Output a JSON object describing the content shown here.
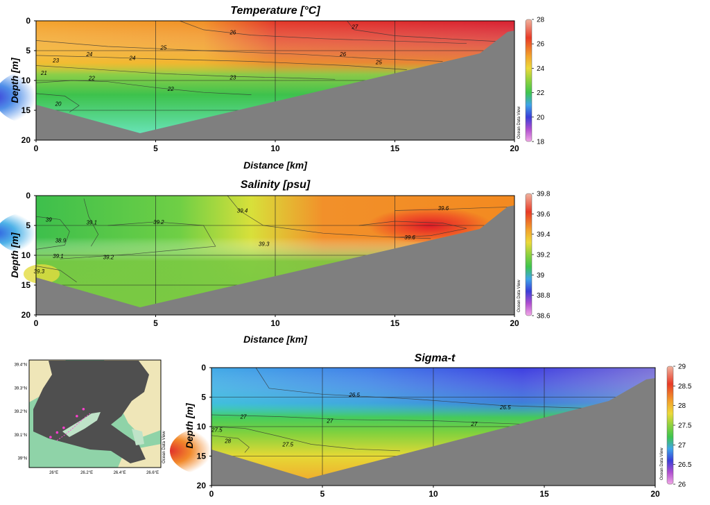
{
  "odv_label": "Ocean Data View",
  "chart_data": [
    {
      "id": "temperature",
      "type": "heatmap",
      "title": "Temperature [°C]",
      "xlabel": "Distance [km]",
      "ylabel": "Depth [m]",
      "xlim": [
        0,
        20
      ],
      "ylim": [
        0,
        20
      ],
      "xticks": [
        0,
        5,
        10,
        15,
        20
      ],
      "yticks": [
        0,
        5,
        10,
        15,
        20
      ],
      "colorbar": {
        "min": 18,
        "max": 28,
        "ticks": [
          18,
          20,
          22,
          24,
          26,
          28
        ]
      },
      "contour_labels": [
        {
          "text": "27",
          "x": 13.2,
          "y": 1.0
        },
        {
          "text": "26",
          "x": 8.1,
          "y": 1.9
        },
        {
          "text": "25",
          "x": 5.2,
          "y": 4.5
        },
        {
          "text": "26",
          "x": 12.7,
          "y": 5.6
        },
        {
          "text": "25",
          "x": 14.2,
          "y": 6.9
        },
        {
          "text": "24",
          "x": 2.1,
          "y": 5.6
        },
        {
          "text": "24",
          "x": 3.9,
          "y": 6.2
        },
        {
          "text": "23",
          "x": 0.7,
          "y": 6.6
        },
        {
          "text": "23",
          "x": 8.1,
          "y": 9.5
        },
        {
          "text": "21",
          "x": 0.2,
          "y": 8.7
        },
        {
          "text": "22",
          "x": 2.2,
          "y": 9.6
        },
        {
          "text": "22",
          "x": 5.5,
          "y": 11.4
        },
        {
          "text": "20",
          "x": 0.8,
          "y": 13.9
        }
      ]
    },
    {
      "id": "salinity",
      "type": "heatmap",
      "title": "Salinity [psu]",
      "xlabel": "Distance [km]",
      "ylabel": "Depth [m]",
      "xlim": [
        0,
        20
      ],
      "ylim": [
        0,
        20
      ],
      "xticks": [
        0,
        5,
        10,
        15,
        20
      ],
      "yticks": [
        0,
        5,
        10,
        15,
        20
      ],
      "colorbar": {
        "min": 38.6,
        "max": 39.8,
        "ticks": [
          38.6,
          38.8,
          39,
          39.2,
          39.4,
          39.6,
          39.8
        ]
      },
      "contour_labels": [
        {
          "text": "39.6",
          "x": 16.8,
          "y": 2.1
        },
        {
          "text": "39.4",
          "x": 8.4,
          "y": 2.5
        },
        {
          "text": "39.1",
          "x": 2.1,
          "y": 4.5
        },
        {
          "text": "39.2",
          "x": 4.9,
          "y": 4.4
        },
        {
          "text": "39",
          "x": 0.4,
          "y": 4.0
        },
        {
          "text": "38.9",
          "x": 0.8,
          "y": 7.5
        },
        {
          "text": "39.6",
          "x": 15.4,
          "y": 7.0
        },
        {
          "text": "39.3",
          "x": 9.3,
          "y": 8.1
        },
        {
          "text": "39.1",
          "x": 0.7,
          "y": 10.1
        },
        {
          "text": "39.2",
          "x": 2.8,
          "y": 10.3
        },
        {
          "text": "39.3",
          "x": -0.1,
          "y": 12.7
        }
      ]
    },
    {
      "id": "sigma_t",
      "type": "heatmap",
      "title": "Sigma-t",
      "xlabel": "",
      "ylabel": "Depth [m]",
      "xlim": [
        0,
        20
      ],
      "ylim": [
        0,
        20
      ],
      "xticks": [
        0,
        5,
        10,
        15,
        20
      ],
      "yticks": [
        0,
        5,
        10,
        15,
        20
      ],
      "colorbar": {
        "min": 26,
        "max": 29,
        "ticks": [
          26,
          26.5,
          27,
          27.5,
          28,
          28.5,
          29
        ]
      },
      "contour_labels": [
        {
          "text": "26.5",
          "x": 6.2,
          "y": 4.6
        },
        {
          "text": "26.5",
          "x": 13.0,
          "y": 6.7
        },
        {
          "text": "27",
          "x": 1.3,
          "y": 8.3
        },
        {
          "text": "27",
          "x": 5.2,
          "y": 9.0
        },
        {
          "text": "27",
          "x": 11.7,
          "y": 9.5
        },
        {
          "text": "27.5",
          "x": 0.0,
          "y": 10.5
        },
        {
          "text": "27.5",
          "x": 3.2,
          "y": 13.0
        },
        {
          "text": "28",
          "x": 0.6,
          "y": 12.4
        }
      ]
    }
  ],
  "map": {
    "lat_labels": [
      "39.4°N",
      "39.3°N",
      "39.2°N",
      "39.1°N",
      "39°N"
    ],
    "lon_labels": [
      "26°E",
      "26.2°E",
      "26.4°E",
      "26.6°E"
    ],
    "stations": [
      {
        "lon": 25.98,
        "lat": 39.09
      },
      {
        "lon": 26.02,
        "lat": 39.11
      },
      {
        "lon": 26.06,
        "lat": 39.13
      },
      {
        "lon": 26.14,
        "lat": 39.18
      },
      {
        "lon": 26.18,
        "lat": 39.21
      }
    ]
  }
}
